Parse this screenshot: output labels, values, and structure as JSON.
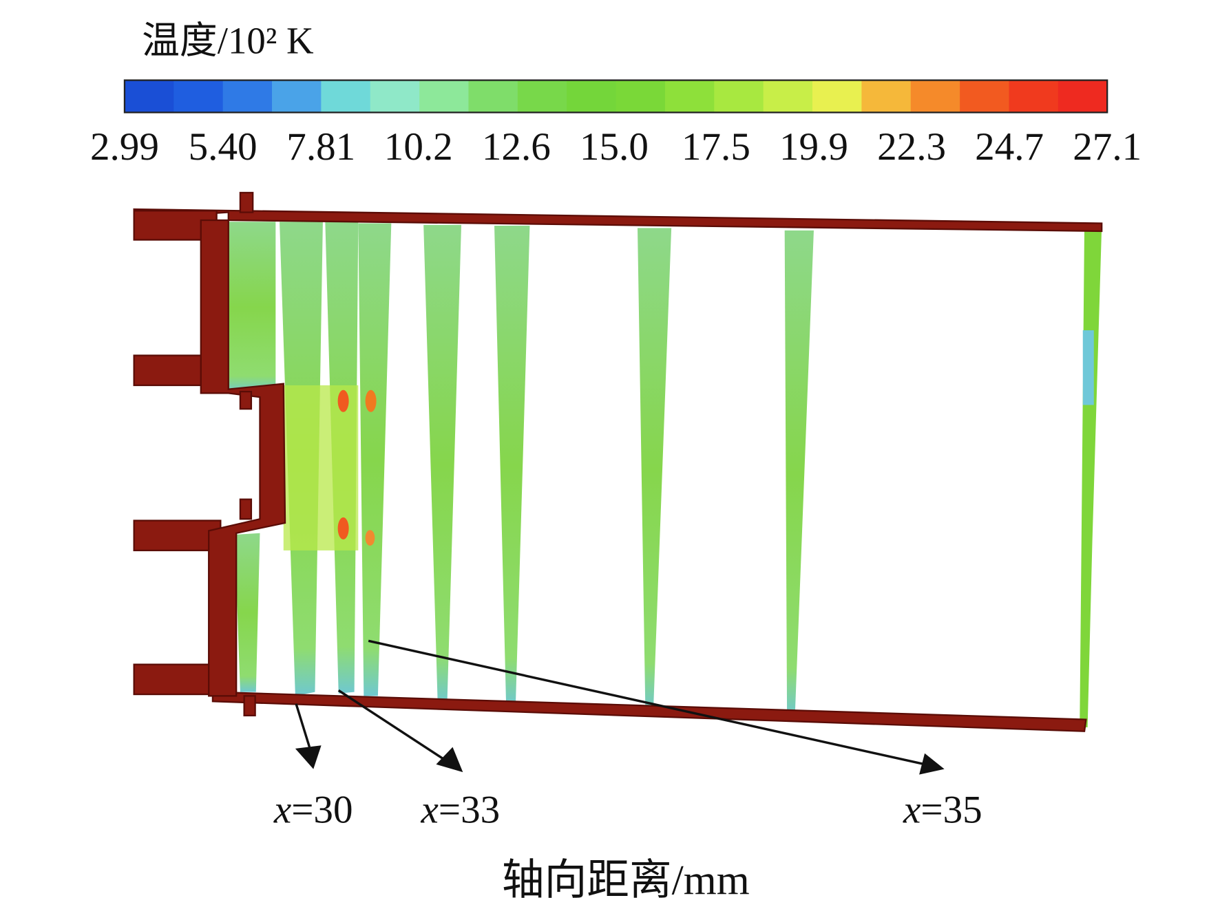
{
  "colorbar": {
    "title": "温度/10² K",
    "lim": [
      2.99,
      27.1
    ],
    "colors": [
      "#1a4fd6",
      "#1f5ee0",
      "#2f7ae6",
      "#4aa3e8",
      "#6fd9d9",
      "#8fe8c8",
      "#8de89a",
      "#7fdd6a",
      "#78d84a",
      "#74d63a",
      "#7ad838",
      "#8ee03a",
      "#a8e840",
      "#c8ee48",
      "#e8f050",
      "#f5b83a",
      "#f58a2a",
      "#f25a20",
      "#f03a1e",
      "#ee2a20"
    ],
    "ticks": [
      2.99,
      {
        "value": 5.4,
        "label": "5.40"
      },
      7.81,
      10.2,
      12.6,
      {
        "value": 15,
        "label": "15.0"
      },
      17.5,
      19.9,
      22.3,
      24.7,
      27.1
    ]
  },
  "annotations": [
    "x=30",
    "x=33",
    "x=35"
  ],
  "axis_label": "轴向距离/mm"
}
